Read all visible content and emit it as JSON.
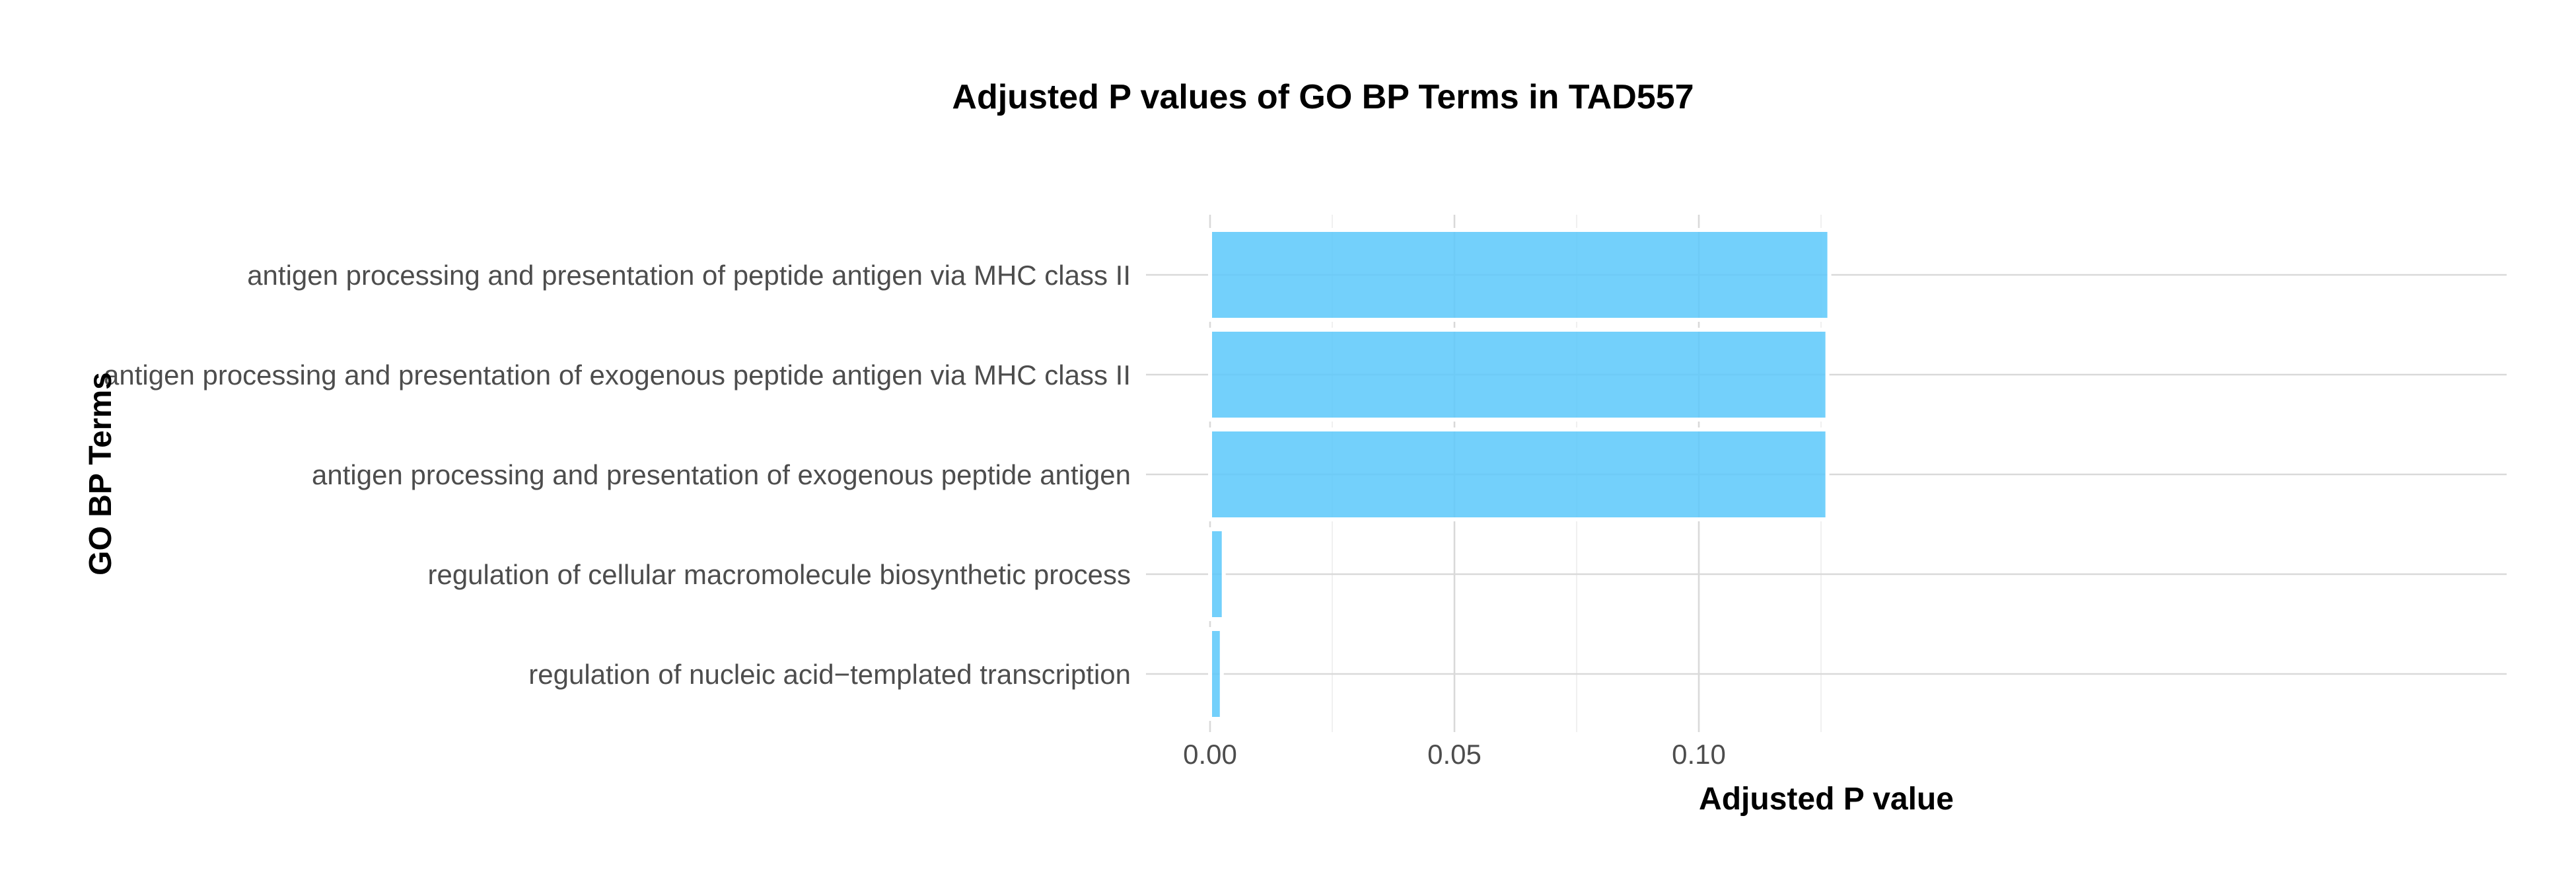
{
  "chart_data": {
    "type": "bar",
    "orientation": "horizontal",
    "title": "Adjusted P values of GO BP Terms in TAD557",
    "xlabel": "Adjusted P value",
    "ylabel": "GO BP Terms",
    "categories": [
      "antigen processing and presentation of peptide antigen via MHC class II",
      "antigen processing and presentation of exogenous peptide antigen via MHC class II",
      "antigen processing and presentation of exogenous peptide antigen",
      "regulation of cellular macromolecule biosynthetic process",
      "regulation of nucleic acid−templated transcription"
    ],
    "values": [
      0.1267,
      0.1263,
      0.1263,
      0.0028,
      0.0024
    ],
    "xlim": [
      0,
      0.1325
    ],
    "x_ticks": [
      0.0,
      0.05,
      0.1
    ],
    "x_tick_labels": [
      "0.00",
      "0.05",
      "0.10"
    ],
    "grid": true,
    "bar_color": "#5bc8fa",
    "bar_opacity": 0.85,
    "legend": "none"
  }
}
